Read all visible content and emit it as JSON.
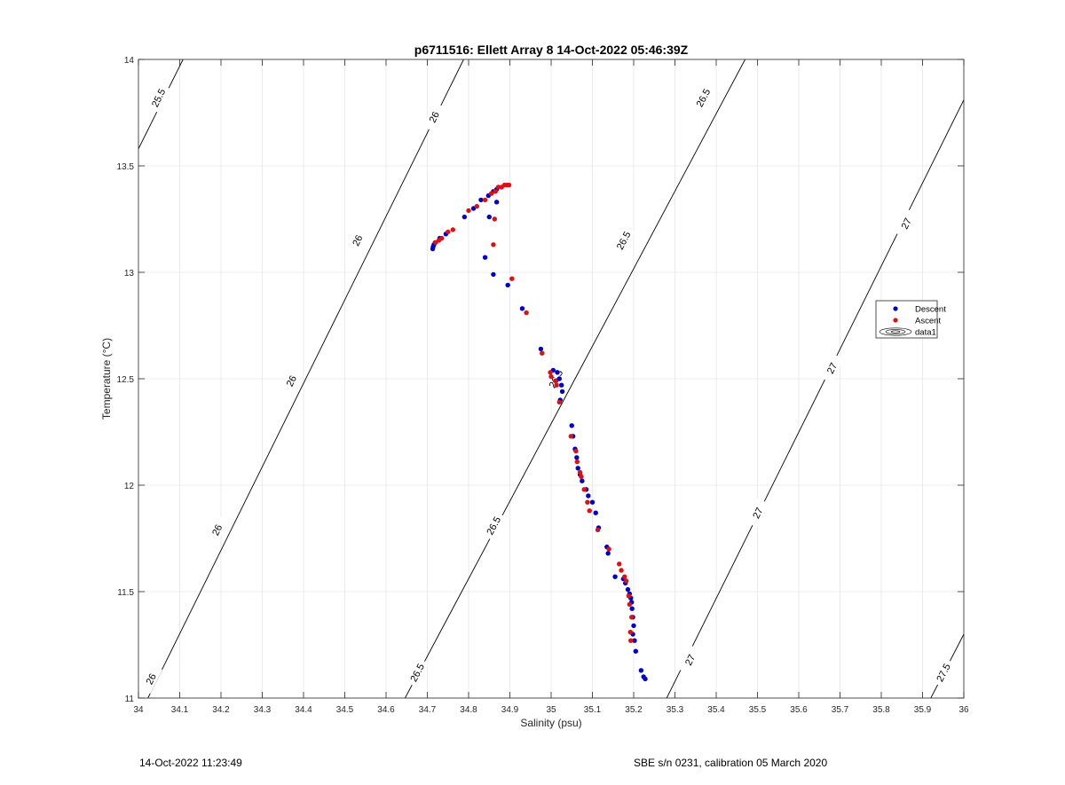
{
  "chart_data": {
    "type": "scatter",
    "title": "p6711516: Ellett Array 8 14-Oct-2022 05:46:39Z",
    "xlabel": "Salinity (psu)",
    "ylabel": "Temperature (°C)",
    "xlim": [
      34,
      36
    ],
    "ylim": [
      11,
      14
    ],
    "xticks": [
      "34",
      "34.1",
      "34.2",
      "34.3",
      "34.4",
      "34.5",
      "34.6",
      "34.7",
      "34.8",
      "34.9",
      "35",
      "35.1",
      "35.2",
      "35.3",
      "35.4",
      "35.5",
      "35.6",
      "35.7",
      "35.8",
      "35.9",
      "36"
    ],
    "yticks": [
      "11",
      "11.5",
      "12",
      "12.5",
      "13",
      "13.5",
      "14"
    ],
    "grid": true,
    "legend_position": "right",
    "series": [
      {
        "name": "Descent",
        "color": "#0000cc",
        "points": [
          [
            34.713,
            13.11
          ],
          [
            34.714,
            13.12
          ],
          [
            34.716,
            13.13
          ],
          [
            34.719,
            13.14
          ],
          [
            34.73,
            13.16
          ],
          [
            34.745,
            13.18
          ],
          [
            34.79,
            13.26
          ],
          [
            34.812,
            13.3
          ],
          [
            34.83,
            13.34
          ],
          [
            34.848,
            13.36
          ],
          [
            34.86,
            13.38
          ],
          [
            34.868,
            13.39
          ],
          [
            34.85,
            13.26
          ],
          [
            34.868,
            13.33
          ],
          [
            34.84,
            13.07
          ],
          [
            34.86,
            12.99
          ],
          [
            34.895,
            12.94
          ],
          [
            34.93,
            12.83
          ],
          [
            34.975,
            12.64
          ],
          [
            35.005,
            12.54
          ],
          [
            35.015,
            12.53
          ],
          [
            35.02,
            12.5
          ],
          [
            35.025,
            12.47
          ],
          [
            35.027,
            12.44
          ],
          [
            35.022,
            12.4
          ],
          [
            35.05,
            12.28
          ],
          [
            35.053,
            12.23
          ],
          [
            35.058,
            12.17
          ],
          [
            35.062,
            12.13
          ],
          [
            35.065,
            12.08
          ],
          [
            35.07,
            12.05
          ],
          [
            35.075,
            12.02
          ],
          [
            35.085,
            11.98
          ],
          [
            35.09,
            11.95
          ],
          [
            35.1,
            11.92
          ],
          [
            35.108,
            11.87
          ],
          [
            35.115,
            11.8
          ],
          [
            35.135,
            11.71
          ],
          [
            35.138,
            11.68
          ],
          [
            35.155,
            11.57
          ],
          [
            35.175,
            11.56
          ],
          [
            35.18,
            11.54
          ],
          [
            35.186,
            11.51
          ],
          [
            35.19,
            11.49
          ],
          [
            35.193,
            11.47
          ],
          [
            35.195,
            11.45
          ],
          [
            35.196,
            11.42
          ],
          [
            35.198,
            11.38
          ],
          [
            35.2,
            11.34
          ],
          [
            35.198,
            11.3
          ],
          [
            35.202,
            11.27
          ],
          [
            35.205,
            11.22
          ],
          [
            35.218,
            11.13
          ],
          [
            35.224,
            11.1
          ],
          [
            35.228,
            11.09
          ]
        ]
      },
      {
        "name": "Ascent",
        "color": "#dd1111",
        "points": [
          [
            34.72,
            13.14
          ],
          [
            34.728,
            13.15
          ],
          [
            34.735,
            13.16
          ],
          [
            34.75,
            13.19
          ],
          [
            34.762,
            13.2
          ],
          [
            34.8,
            13.29
          ],
          [
            34.82,
            13.31
          ],
          [
            34.84,
            13.34
          ],
          [
            34.855,
            13.37
          ],
          [
            34.865,
            13.38
          ],
          [
            34.872,
            13.4
          ],
          [
            34.88,
            13.4
          ],
          [
            34.887,
            13.41
          ],
          [
            34.893,
            13.41
          ],
          [
            34.898,
            13.41
          ],
          [
            34.863,
            13.25
          ],
          [
            34.86,
            13.13
          ],
          [
            34.905,
            12.97
          ],
          [
            34.94,
            12.81
          ],
          [
            34.978,
            12.62
          ],
          [
            34.998,
            12.53
          ],
          [
            35.0,
            12.51
          ],
          [
            35.01,
            12.49
          ],
          [
            35.013,
            12.47
          ],
          [
            35.02,
            12.39
          ],
          [
            35.048,
            12.23
          ],
          [
            35.06,
            12.16
          ],
          [
            35.063,
            12.11
          ],
          [
            35.07,
            12.06
          ],
          [
            35.073,
            12.04
          ],
          [
            35.08,
            11.98
          ],
          [
            35.088,
            11.92
          ],
          [
            35.093,
            11.88
          ],
          [
            35.113,
            11.79
          ],
          [
            35.14,
            11.7
          ],
          [
            35.165,
            11.63
          ],
          [
            35.17,
            11.6
          ],
          [
            35.178,
            11.57
          ],
          [
            35.182,
            11.55
          ],
          [
            35.188,
            11.48
          ],
          [
            35.19,
            11.44
          ],
          [
            35.195,
            11.38
          ],
          [
            35.192,
            11.31
          ],
          [
            35.193,
            11.27
          ]
        ]
      },
      {
        "name": "data1",
        "color": "#000000",
        "contours": [
          {
            "level": 25.5,
            "segment": [
              [
                34.0,
                13.58
              ],
              [
                34.108,
                14.0
              ]
            ],
            "labels": [
              {
                "text": "25.5",
                "at": [
                  34.048,
                  13.82
                ]
              }
            ]
          },
          {
            "level": 26,
            "segment": [
              [
                34.0,
                10.91
              ],
              [
                34.788,
                14.0
              ]
            ],
            "labels": [
              {
                "text": "26",
                "at": [
                  34.03,
                  11.09
                ]
              },
              {
                "text": "26",
                "at": [
                  34.19,
                  11.79
                ]
              },
              {
                "text": "26",
                "at": [
                  34.37,
                  12.49
                ]
              },
              {
                "text": "26",
                "at": [
                  34.53,
                  13.15
                ]
              },
              {
                "text": "26",
                "at": [
                  34.716,
                  13.73
                ]
              }
            ]
          },
          {
            "level": 26.5,
            "segment": [
              [
                34.646,
                11.0
              ],
              [
                35.47,
                14.0
              ]
            ],
            "labels": [
              {
                "text": "26.5",
                "at": [
                  34.675,
                  11.12
                ]
              },
              {
                "text": "26.5",
                "at": [
                  34.86,
                  11.81
                ]
              },
              {
                "text": "26.5",
                "at": [
                  35.011,
                  12.5
                ]
              },
              {
                "text": "26.5",
                "at": [
                  35.175,
                  13.15
                ]
              },
              {
                "text": "26.5",
                "at": [
                  35.368,
                  13.82
                ]
              }
            ]
          },
          {
            "level": 27,
            "segment": [
              [
                35.28,
                11.0
              ],
              [
                36.0,
                13.81
              ]
            ],
            "labels": [
              {
                "text": "27",
                "at": [
                  35.336,
                  11.18
                ]
              },
              {
                "text": "27",
                "at": [
                  35.5,
                  11.87
                ]
              },
              {
                "text": "27",
                "at": [
                  35.68,
                  12.55
                ]
              },
              {
                "text": "27",
                "at": [
                  35.86,
                  13.23
                ]
              }
            ]
          },
          {
            "level": 27.5,
            "segment": [
              [
                35.92,
                11.0
              ],
              [
                36.0,
                11.3
              ]
            ],
            "labels": [
              {
                "text": "27.5",
                "at": [
                  35.95,
                  11.12
                ]
              }
            ]
          }
        ]
      }
    ]
  },
  "footer": {
    "left": "14-Oct-2022 11:23:49",
    "right": "SBE s/n 0231, calibration 05 March 2020"
  }
}
